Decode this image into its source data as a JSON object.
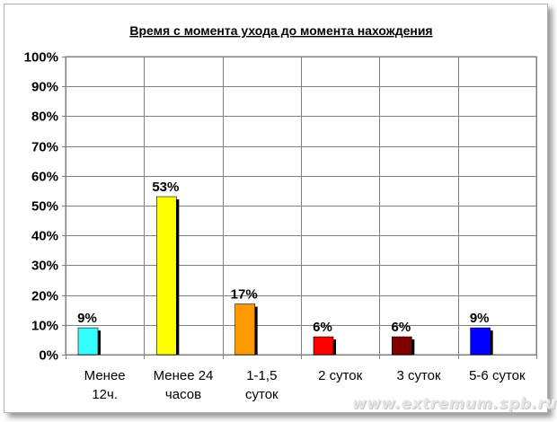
{
  "chart_data": {
    "type": "bar",
    "title": "Время с момента ухода до момента нахождения",
    "categories": [
      [
        "Менее",
        "12ч."
      ],
      [
        "Менее 24",
        "часов"
      ],
      [
        "1-1,5",
        "суток"
      ],
      [
        "2 суток"
      ],
      [
        "3 суток"
      ],
      [
        "5-6 суток"
      ]
    ],
    "values": [
      9,
      53,
      17,
      6,
      6,
      9
    ],
    "value_labels": [
      "9%",
      "53%",
      "17%",
      "6%",
      "6%",
      "9%"
    ],
    "colors": [
      "#33ffff",
      "#ffff00",
      "#ff9900",
      "#ff0000",
      "#800000",
      "#0000ff"
    ],
    "ylim": [
      0,
      100
    ],
    "yticks": [
      0,
      10,
      20,
      30,
      40,
      50,
      60,
      70,
      80,
      90,
      100
    ],
    "ytick_labels": [
      "0%",
      "10%",
      "20%",
      "30%",
      "40%",
      "50%",
      "60%",
      "70%",
      "80%",
      "90%",
      "100%"
    ],
    "grid": true,
    "legend": false
  },
  "watermark": "www.extremum.spb.ru"
}
